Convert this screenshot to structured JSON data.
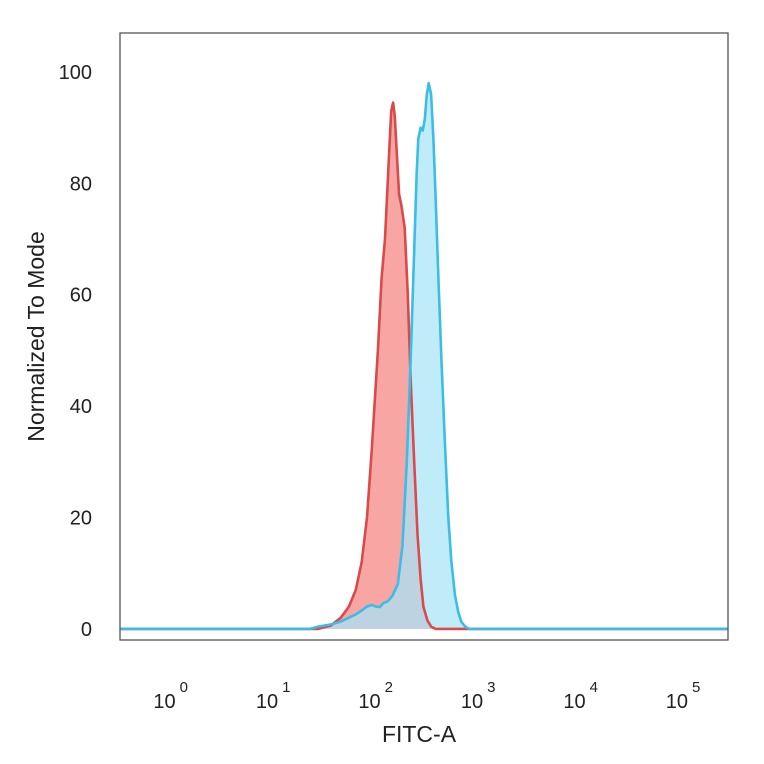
{
  "chart_data": {
    "type": "area",
    "title": "",
    "xlabel": "FITC-A",
    "ylabel": "Normalized To Mode",
    "xscale": "log",
    "xlim": [
      0.35,
      300000
    ],
    "ylim": [
      -2,
      107
    ],
    "yticks": [
      0,
      20,
      40,
      60,
      80,
      100
    ],
    "xticks": [
      {
        "base": "10",
        "exp": "0",
        "value": 1
      },
      {
        "base": "10",
        "exp": "1",
        "value": 10
      },
      {
        "base": "10",
        "exp": "2",
        "value": 100
      },
      {
        "base": "10",
        "exp": "3",
        "value": 1000
      },
      {
        "base": "10",
        "exp": "4",
        "value": 10000
      },
      {
        "base": "10",
        "exp": "5",
        "value": 100000
      }
    ],
    "grid": false,
    "legend": "none",
    "series": [
      {
        "color_fill": "#f8a6a4",
        "color_line": "#d94a4d",
        "x": [
          0.35,
          30,
          40,
          50,
          60,
          70,
          80,
          90,
          100,
          115,
          125,
          135,
          145,
          155,
          162,
          168,
          175,
          185,
          195,
          210,
          225,
          240,
          260,
          280,
          300,
          320,
          350,
          380,
          420,
          500,
          700,
          300000
        ],
        "y": [
          0,
          0,
          0.6,
          2,
          4,
          7,
          12,
          20,
          32,
          50,
          63,
          70,
          82,
          93,
          94.5,
          92,
          86,
          78,
          76,
          72,
          60,
          45,
          30,
          17,
          9,
          4,
          1.5,
          0.4,
          0,
          0,
          0,
          0
        ]
      },
      {
        "color_fill": "#a8e4f8",
        "color_line": "#3bbde5",
        "x": [
          0.35,
          25,
          30,
          40,
          50,
          60,
          70,
          80,
          90,
          100,
          110,
          120,
          130,
          145,
          160,
          180,
          200,
          220,
          240,
          260,
          275,
          285,
          300,
          315,
          330,
          345,
          360,
          380,
          400,
          420,
          450,
          480,
          520,
          560,
          600,
          650,
          700,
          750,
          800,
          850,
          900,
          1000,
          1100,
          1200,
          300000
        ],
        "y": [
          0,
          0,
          0.4,
          0.8,
          1.3,
          2,
          2.6,
          3.3,
          4,
          4.3,
          4,
          3.9,
          4.6,
          5,
          6,
          8,
          15,
          30,
          48,
          68,
          82,
          88,
          90,
          89.5,
          91.5,
          96,
          98,
          96,
          88,
          78,
          62,
          48,
          33,
          20,
          12,
          6,
          3,
          1.3,
          0.6,
          0.2,
          0,
          0,
          0,
          0,
          0
        ]
      }
    ]
  }
}
